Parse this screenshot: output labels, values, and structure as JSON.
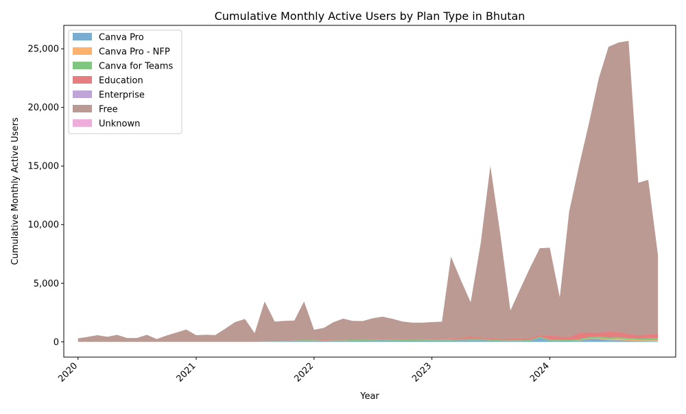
{
  "chart_data": {
    "type": "area",
    "stacked": true,
    "title": "Cumulative Monthly Active Users by Plan Type in Bhutan",
    "xlabel": "Year",
    "ylabel": "Cumulative Monthly Active Users",
    "x_ticks": [
      "2020",
      "2021",
      "2022",
      "2023",
      "2024"
    ],
    "y_ticks": [
      "0",
      "5,000",
      "10,000",
      "15,000",
      "20,000",
      "25,000"
    ],
    "y_tick_values": [
      0,
      5000,
      10000,
      15000,
      20000,
      25000
    ],
    "ylim": [
      -1300,
      27000
    ],
    "xlim": [
      "2019-11-18",
      "2025-01-25"
    ],
    "grid": false,
    "legend_position": "top-left",
    "months": [
      "2020-01",
      "2020-02",
      "2020-03",
      "2020-04",
      "2020-05",
      "2020-06",
      "2020-07",
      "2020-08",
      "2020-09",
      "2020-10",
      "2020-11",
      "2020-12",
      "2021-01",
      "2021-02",
      "2021-03",
      "2021-04",
      "2021-05",
      "2021-06",
      "2021-07",
      "2021-08",
      "2021-09",
      "2021-10",
      "2021-11",
      "2021-12",
      "2022-01",
      "2022-02",
      "2022-03",
      "2022-04",
      "2022-05",
      "2022-06",
      "2022-07",
      "2022-08",
      "2022-09",
      "2022-10",
      "2022-11",
      "2022-12",
      "2023-01",
      "2023-02",
      "2023-03",
      "2023-04",
      "2023-05",
      "2023-06",
      "2023-07",
      "2023-08",
      "2023-09",
      "2023-10",
      "2023-11",
      "2023-12",
      "2024-01",
      "2024-02",
      "2024-03",
      "2024-04",
      "2024-05",
      "2024-06",
      "2024-07",
      "2024-08",
      "2024-09",
      "2024-10",
      "2024-11",
      "2024-12"
    ],
    "series": [
      {
        "name": "Canva Pro",
        "color": "#1f77b4",
        "values": [
          0,
          0,
          0,
          0,
          0,
          0,
          0,
          0,
          0,
          0,
          0,
          0,
          0,
          0,
          0,
          0,
          0,
          0,
          0,
          20,
          30,
          40,
          60,
          60,
          60,
          50,
          60,
          60,
          80,
          100,
          120,
          130,
          120,
          100,
          100,
          110,
          120,
          120,
          120,
          130,
          150,
          140,
          110,
          70,
          60,
          60,
          80,
          350,
          100,
          80,
          70,
          90,
          250,
          260,
          150,
          150,
          100,
          80,
          60,
          60
        ]
      },
      {
        "name": "Canva Pro - NFP",
        "color": "#ff7f0e",
        "values": [
          0,
          0,
          0,
          0,
          0,
          0,
          0,
          0,
          0,
          0,
          0,
          0,
          0,
          0,
          0,
          0,
          0,
          0,
          0,
          0,
          0,
          0,
          0,
          0,
          0,
          0,
          0,
          0,
          0,
          0,
          0,
          0,
          0,
          0,
          0,
          0,
          0,
          0,
          0,
          0,
          0,
          0,
          0,
          0,
          0,
          0,
          0,
          0,
          0,
          0,
          0,
          20,
          40,
          60,
          80,
          120,
          100,
          80,
          80,
          100
        ]
      },
      {
        "name": "Canva for Teams",
        "color": "#2ca02c",
        "values": [
          0,
          0,
          0,
          0,
          0,
          0,
          0,
          0,
          0,
          0,
          0,
          0,
          0,
          0,
          0,
          0,
          0,
          0,
          0,
          10,
          10,
          30,
          60,
          90,
          90,
          60,
          70,
          80,
          80,
          80,
          80,
          80,
          80,
          100,
          90,
          80,
          90,
          90,
          90,
          100,
          110,
          110,
          90,
          80,
          80,
          90,
          90,
          100,
          100,
          90,
          90,
          120,
          120,
          140,
          140,
          120,
          140,
          120,
          170,
          180
        ]
      },
      {
        "name": "Education",
        "color": "#d62728",
        "values": [
          0,
          0,
          0,
          0,
          0,
          0,
          0,
          0,
          0,
          0,
          0,
          0,
          0,
          0,
          0,
          0,
          0,
          0,
          0,
          0,
          0,
          0,
          0,
          0,
          30,
          50,
          40,
          40,
          40,
          40,
          40,
          40,
          40,
          40,
          40,
          40,
          40,
          40,
          60,
          110,
          220,
          120,
          120,
          110,
          130,
          140,
          160,
          140,
          350,
          300,
          250,
          530,
          400,
          350,
          500,
          450,
          340,
          290,
          320,
          360
        ]
      },
      {
        "name": "Enterprise",
        "color": "#9467bd",
        "values": [
          0,
          0,
          0,
          0,
          0,
          0,
          0,
          0,
          0,
          0,
          0,
          0,
          0,
          0,
          0,
          0,
          0,
          0,
          0,
          0,
          0,
          0,
          0,
          0,
          0,
          0,
          0,
          0,
          0,
          0,
          0,
          0,
          0,
          0,
          0,
          0,
          0,
          0,
          0,
          0,
          0,
          0,
          0,
          0,
          0,
          0,
          0,
          0,
          0,
          0,
          0,
          0,
          0,
          0,
          0,
          0,
          0,
          0,
          0,
          0
        ]
      },
      {
        "name": "Free",
        "color": "#8c564b",
        "values": [
          300,
          430,
          570,
          430,
          600,
          330,
          330,
          600,
          240,
          540,
          800,
          1050,
          570,
          610,
          580,
          1130,
          1680,
          1950,
          750,
          3420,
          1690,
          1720,
          1700,
          3300,
          850,
          1040,
          1500,
          1800,
          1590,
          1560,
          1770,
          1900,
          1730,
          1500,
          1410,
          1410,
          1440,
          1470,
          7000,
          4900,
          2900,
          8030,
          14700,
          8900,
          2400,
          4200,
          6000,
          7400,
          7480,
          3330,
          10700,
          14300,
          17800,
          21700,
          24300,
          24700,
          25000,
          13000,
          13200,
          6700
        ]
      },
      {
        "name": "Unknown",
        "color": "#e377c2",
        "values": [
          0,
          0,
          0,
          0,
          0,
          0,
          0,
          0,
          0,
          0,
          0,
          0,
          0,
          0,
          0,
          0,
          0,
          0,
          0,
          0,
          0,
          0,
          0,
          0,
          0,
          0,
          0,
          0,
          0,
          0,
          0,
          0,
          0,
          0,
          0,
          0,
          0,
          0,
          0,
          0,
          0,
          0,
          0,
          0,
          0,
          0,
          0,
          0,
          0,
          0,
          0,
          0,
          0,
          0,
          0,
          0,
          0,
          0,
          0,
          0
        ]
      }
    ]
  }
}
